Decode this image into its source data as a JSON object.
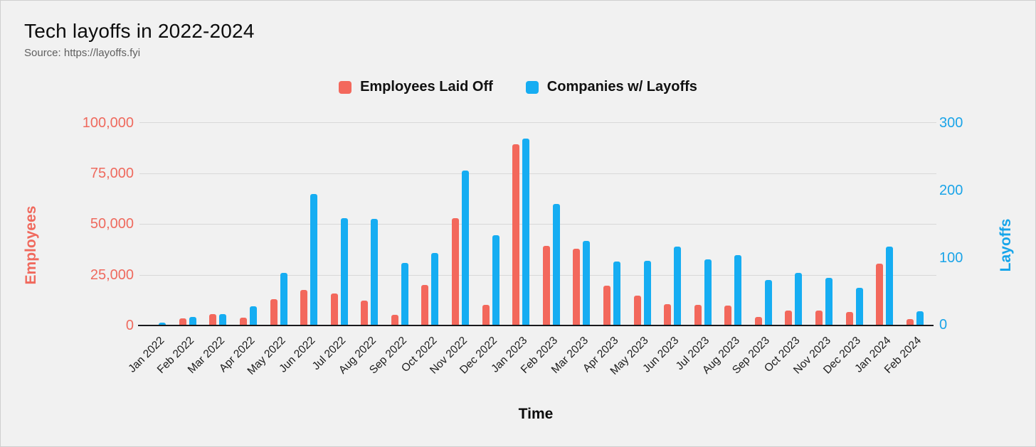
{
  "header": {
    "title": "Tech layoffs in 2022-2024",
    "source": "Source: https://layoffs.fyi"
  },
  "colors": {
    "background": "#f1f1f1",
    "employees": "#f3685c",
    "companies": "#16adf2",
    "left_axis_text": "#ef6a5e",
    "right_axis_text": "#1aa4e8",
    "gridline": "#d8d8d8",
    "baseline": "#1a1a1c"
  },
  "chart_data": {
    "type": "bar",
    "title": "Tech layoffs in 2022-2024",
    "source": "Source: https://layoffs.fyi",
    "xlabel": "Time",
    "legend_position": "top",
    "grid": true,
    "categories": [
      "Jan 2022",
      "Feb 2022",
      "Mar 2022",
      "Apr 2022",
      "May 2022",
      "Jun 2022",
      "Jul 2022",
      "Aug 2022",
      "Sep 2022",
      "Oct 2022",
      "Nov 2022",
      "Dec 2022",
      "Jan 2023",
      "Feb 2023",
      "Mar 2023",
      "Apr 2023",
      "May 2023",
      "Jun 2023",
      "Jul 2023",
      "Aug 2023",
      "Sep 2023",
      "Oct 2023",
      "Nov 2023",
      "Dec 2023",
      "Jan 2024",
      "Feb 2024"
    ],
    "series": [
      {
        "name": "Employees Laid Off",
        "axis": "left",
        "color": "#f3685c",
        "values": [
          500,
          3600,
          5500,
          3900,
          12800,
          17500,
          15700,
          12300,
          5300,
          20100,
          52800,
          10100,
          89300,
          39100,
          37700,
          19500,
          14700,
          10400,
          10100,
          9800,
          4100,
          7200,
          7400,
          6500,
          30300,
          3000
        ]
      },
      {
        "name": "Companies w/ Layoffs",
        "axis": "right",
        "color": "#16adf2",
        "values": [
          4,
          13,
          17,
          28,
          78,
          194,
          158,
          157,
          92,
          107,
          229,
          133,
          276,
          179,
          125,
          94,
          95,
          116,
          98,
          104,
          67,
          78,
          70,
          56,
          116,
          21
        ]
      }
    ],
    "y_left": {
      "label": "Employees",
      "max": 100000,
      "min": 0,
      "ticks": [
        "100,000",
        "75,000",
        "50,000",
        "25,000",
        "0"
      ]
    },
    "y_right": {
      "label": "Layoffs",
      "max": 300,
      "min": 0,
      "ticks": [
        "300",
        "200",
        "100",
        "0"
      ]
    }
  }
}
